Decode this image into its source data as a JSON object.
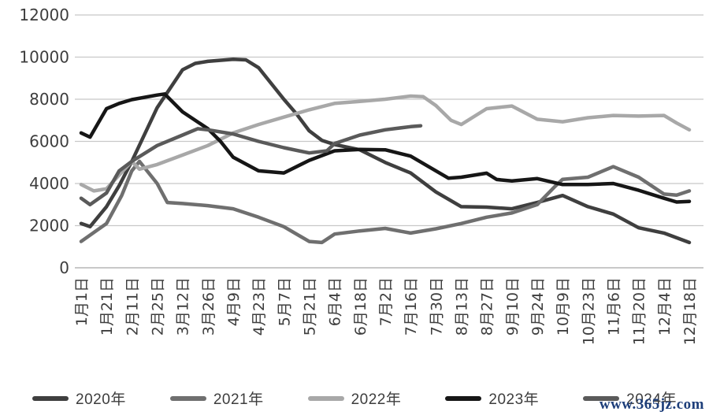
{
  "chart_data": {
    "type": "line",
    "title": "",
    "xlabel": "",
    "ylabel": "",
    "ylim": [
      0,
      12000
    ],
    "y_ticks": [
      0,
      2000,
      4000,
      6000,
      8000,
      10000,
      12000
    ],
    "grid": "horizontal",
    "legend_position": "bottom",
    "x_labels": [
      "1月1日",
      "1月21日",
      "2月11日",
      "2月25日",
      "3月12日",
      "3月26日",
      "4月9日",
      "4月23日",
      "5月7日",
      "5月21日",
      "6月4日",
      "6月18日",
      "7月2日",
      "7月16日",
      "7月30日",
      "8月13日",
      "8月27日",
      "9月10日",
      "9月24日",
      "10月9日",
      "10月23日",
      "11月6日",
      "11月20日",
      "12月4日",
      "12月18日"
    ],
    "series": [
      {
        "name": "2020年",
        "color": "#3f3f3f",
        "points": [
          [
            0,
            2100
          ],
          [
            0.35,
            1950
          ],
          [
            1,
            2900
          ],
          [
            1.5,
            3900
          ],
          [
            2,
            5050
          ],
          [
            3,
            7600
          ],
          [
            4,
            9400
          ],
          [
            4.5,
            9700
          ],
          [
            5,
            9800
          ],
          [
            6,
            9900
          ],
          [
            6.5,
            9870
          ],
          [
            7,
            9500
          ],
          [
            8,
            8000
          ],
          [
            8.5,
            7300
          ],
          [
            9,
            6500
          ],
          [
            9.5,
            6050
          ],
          [
            10,
            5850
          ],
          [
            11,
            5600
          ],
          [
            12,
            5000
          ],
          [
            13,
            4500
          ],
          [
            14,
            3600
          ],
          [
            15,
            2900
          ],
          [
            16,
            2880
          ],
          [
            17,
            2800
          ],
          [
            18,
            3100
          ],
          [
            19,
            3430
          ],
          [
            20,
            2900
          ],
          [
            21,
            2550
          ],
          [
            22,
            1900
          ],
          [
            23,
            1650
          ],
          [
            24,
            1200
          ]
        ]
      },
      {
        "name": "2021年",
        "color": "#6f6f6f",
        "points": [
          [
            0,
            1250
          ],
          [
            1,
            2100
          ],
          [
            1.6,
            3430
          ],
          [
            2,
            4600
          ],
          [
            2.3,
            5050
          ],
          [
            3,
            4000
          ],
          [
            3.4,
            3100
          ],
          [
            4,
            3050
          ],
          [
            5,
            2950
          ],
          [
            6,
            2800
          ],
          [
            7,
            2400
          ],
          [
            8,
            1950
          ],
          [
            9,
            1250
          ],
          [
            9.5,
            1200
          ],
          [
            10,
            1600
          ],
          [
            11,
            1750
          ],
          [
            12,
            1870
          ],
          [
            13,
            1650
          ],
          [
            14,
            1850
          ],
          [
            15,
            2100
          ],
          [
            16,
            2400
          ],
          [
            17,
            2600
          ],
          [
            18,
            3000
          ],
          [
            18.7,
            3860
          ],
          [
            19,
            4200
          ],
          [
            20,
            4300
          ],
          [
            21,
            4800
          ],
          [
            22,
            4300
          ],
          [
            23,
            3500
          ],
          [
            23.5,
            3450
          ],
          [
            24,
            3650
          ]
        ]
      },
      {
        "name": "2022年",
        "color": "#a8a8a8",
        "points": [
          [
            0,
            3950
          ],
          [
            0.5,
            3650
          ],
          [
            1,
            3750
          ],
          [
            2,
            5050
          ],
          [
            2.3,
            4680
          ],
          [
            3,
            4900
          ],
          [
            4,
            5350
          ],
          [
            5,
            5800
          ],
          [
            6,
            6400
          ],
          [
            7,
            6800
          ],
          [
            8,
            7150
          ],
          [
            9,
            7500
          ],
          [
            10,
            7800
          ],
          [
            11,
            7900
          ],
          [
            12,
            8000
          ],
          [
            13,
            8150
          ],
          [
            13.5,
            8120
          ],
          [
            14,
            7700
          ],
          [
            14.6,
            7000
          ],
          [
            15,
            6800
          ],
          [
            16,
            7550
          ],
          [
            17,
            7680
          ],
          [
            18,
            7050
          ],
          [
            19,
            6930
          ],
          [
            20,
            7120
          ],
          [
            21,
            7230
          ],
          [
            22,
            7200
          ],
          [
            23,
            7230
          ],
          [
            23.5,
            6870
          ],
          [
            24,
            6550
          ]
        ]
      },
      {
        "name": "2023年",
        "color": "#161616",
        "points": [
          [
            0,
            6400
          ],
          [
            0.35,
            6200
          ],
          [
            1,
            7550
          ],
          [
            1.5,
            7800
          ],
          [
            2,
            7980
          ],
          [
            3,
            8200
          ],
          [
            3.3,
            8250
          ],
          [
            4,
            7400
          ],
          [
            5,
            6600
          ],
          [
            5.5,
            6000
          ],
          [
            6,
            5250
          ],
          [
            7,
            4600
          ],
          [
            8,
            4500
          ],
          [
            9,
            5100
          ],
          [
            10,
            5550
          ],
          [
            11,
            5620
          ],
          [
            12,
            5600
          ],
          [
            13,
            5300
          ],
          [
            14,
            4600
          ],
          [
            14.5,
            4250
          ],
          [
            15,
            4300
          ],
          [
            16,
            4490
          ],
          [
            16.4,
            4190
          ],
          [
            17,
            4120
          ],
          [
            18,
            4230
          ],
          [
            19,
            3950
          ],
          [
            20,
            3950
          ],
          [
            21,
            4000
          ],
          [
            22,
            3680
          ],
          [
            23,
            3300
          ],
          [
            23.5,
            3120
          ],
          [
            24,
            3150
          ]
        ]
      },
      {
        "name": "2024年",
        "color": "#5a5a5a",
        "points": [
          [
            0,
            3300
          ],
          [
            0.35,
            3000
          ],
          [
            1,
            3550
          ],
          [
            1.5,
            4600
          ],
          [
            2,
            5050
          ],
          [
            3,
            5800
          ],
          [
            4,
            6300
          ],
          [
            4.6,
            6600
          ],
          [
            5,
            6550
          ],
          [
            6,
            6350
          ],
          [
            7,
            6000
          ],
          [
            8,
            5700
          ],
          [
            9,
            5450
          ],
          [
            9.7,
            5550
          ],
          [
            10,
            5900
          ],
          [
            11,
            6300
          ],
          [
            12,
            6550
          ],
          [
            13,
            6700
          ],
          [
            13.4,
            6740
          ]
        ]
      }
    ]
  },
  "watermark": "www.365jz.com",
  "colors": {
    "background": "#ffffff",
    "axis_text": "#3d3d3d",
    "gridline": "#c8c8c8",
    "zero_line": "#a8a8a8",
    "watermark": "#1d3e7a"
  }
}
